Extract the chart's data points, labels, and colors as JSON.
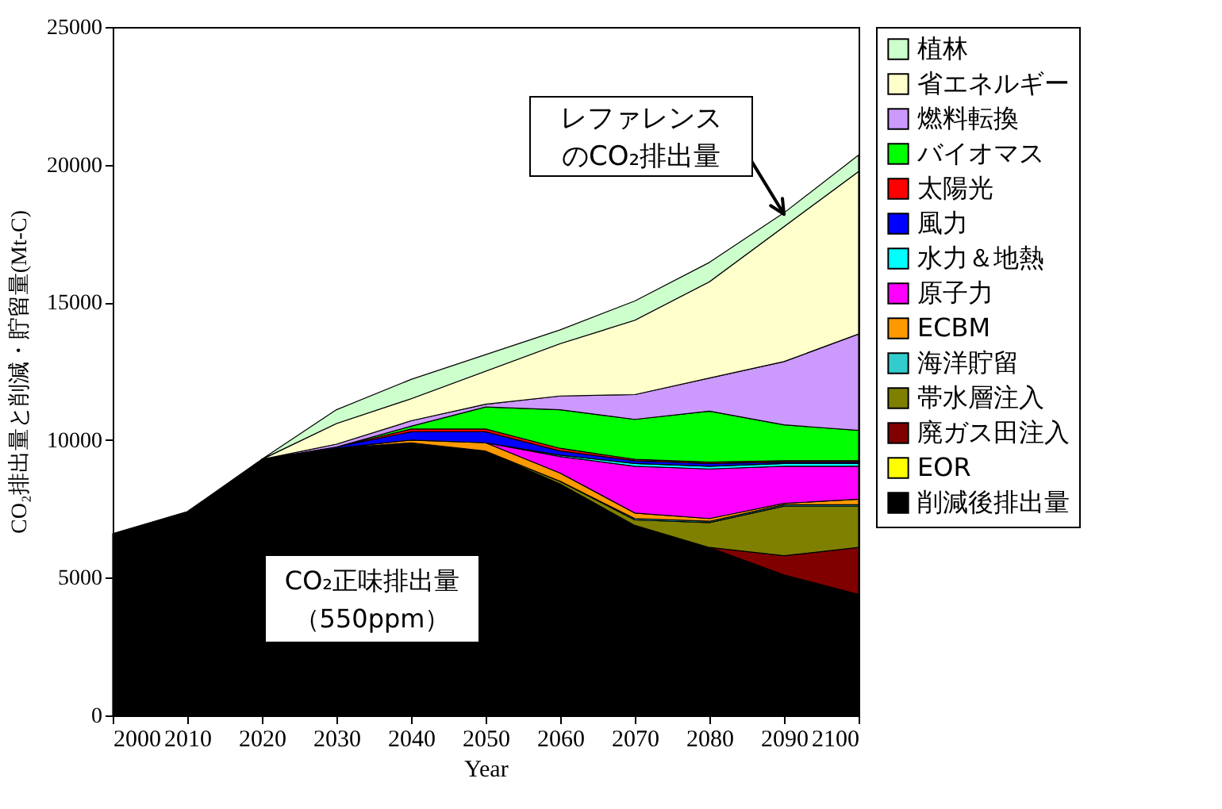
{
  "chart_data": {
    "type": "area",
    "stacked": true,
    "xlabel": "Year",
    "ylabel": "CO₂排出量と削減・貯留量(Mt-C)",
    "x": [
      2000,
      2010,
      2020,
      2030,
      2040,
      2050,
      2060,
      2070,
      2080,
      2090,
      2100
    ],
    "xlim": [
      2000,
      2100
    ],
    "xticks": [
      2000,
      2010,
      2020,
      2030,
      2040,
      2050,
      2060,
      2070,
      2080,
      2090,
      2100
    ],
    "ylim": [
      0,
      25000
    ],
    "yticks": [
      0,
      5000,
      10000,
      15000,
      20000,
      25000
    ],
    "grid": false,
    "legend": "right",
    "annotations": [
      {
        "text": "レファレンスのCO₂排出量",
        "x": 2090,
        "y": 18200
      },
      "CO₂正味排出量（550ppm）"
    ],
    "series": [
      {
        "name": "削減後排出量",
        "color": "#000000",
        "values": [
          6600,
          7400,
          9300,
          9700,
          9900,
          9600,
          8400,
          6900,
          6100,
          5100,
          4400
        ]
      },
      {
        "name": "EOR",
        "color": "#ffff00",
        "values": [
          null,
          null,
          null,
          null,
          null,
          null,
          null,
          null,
          null,
          null,
          null
        ]
      },
      {
        "name": "廃ガス田注入",
        "color": "#800000",
        "values": [
          null,
          null,
          null,
          null,
          null,
          null,
          null,
          null,
          0,
          700,
          1700
        ]
      },
      {
        "name": "帯水層注入",
        "color": "#808000",
        "values": [
          null,
          null,
          null,
          null,
          null,
          0,
          100,
          200,
          900,
          1800,
          1500
        ]
      },
      {
        "name": "海洋貯留",
        "color": "#33cccc",
        "values": [
          null,
          null,
          null,
          null,
          null,
          null,
          0,
          50,
          50,
          50,
          50
        ]
      },
      {
        "name": "ECBM",
        "color": "#ff9900",
        "values": [
          null,
          null,
          null,
          0,
          100,
          300,
          300,
          200,
          100,
          50,
          200
        ]
      },
      {
        "name": "原子力",
        "color": "#ff00ff",
        "values": [
          null,
          null,
          null,
          null,
          null,
          0,
          600,
          1700,
          1800,
          1350,
          1200
        ]
      },
      {
        "name": "水力＆地熱",
        "color": "#00ffff",
        "values": [
          null,
          null,
          null,
          null,
          null,
          0,
          50,
          100,
          100,
          100,
          100
        ]
      },
      {
        "name": "風力",
        "color": "#0000ff",
        "values": [
          null,
          null,
          0,
          50,
          300,
          400,
          150,
          100,
          100,
          50,
          50
        ]
      },
      {
        "name": "太陽光",
        "color": "#ff0000",
        "values": [
          null,
          null,
          null,
          0,
          100,
          100,
          100,
          50,
          50,
          50,
          50
        ]
      },
      {
        "name": "バイオマス",
        "color": "#00ff00",
        "values": [
          null,
          null,
          null,
          0,
          100,
          800,
          1400,
          1450,
          1850,
          1300,
          1100
        ]
      },
      {
        "name": "燃料転換",
        "color": "#cc99ff",
        "values": [
          null,
          null,
          0,
          100,
          200,
          100,
          500,
          900,
          1200,
          2300,
          3500
        ]
      },
      {
        "name": "省エネルギー",
        "color": "#ffffcc",
        "values": [
          null,
          null,
          0,
          750,
          800,
          1200,
          1900,
          2700,
          3500,
          4900,
          5900
        ]
      },
      {
        "name": "植林",
        "color": "#ccffcc",
        "values": [
          null,
          null,
          0,
          500,
          700,
          600,
          500,
          700,
          700,
          500,
          600
        ]
      }
    ]
  }
}
